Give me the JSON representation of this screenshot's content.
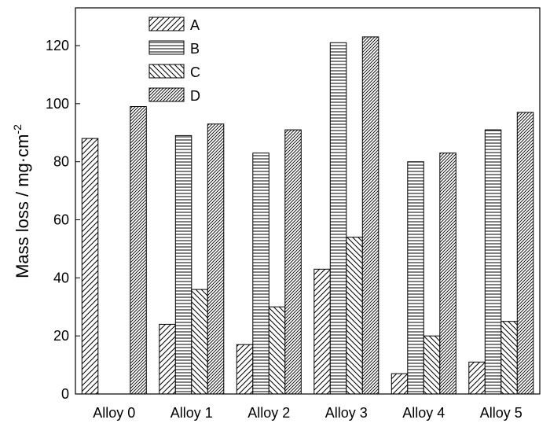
{
  "chart_data": {
    "type": "bar",
    "title": "",
    "xlabel": "",
    "ylabel": "Mass loss / mg·cm",
    "ylabel_superscript": "-2",
    "categories": [
      "Alloy 0",
      "Alloy 1",
      "Alloy 2",
      "Alloy 3",
      "Alloy 4",
      "Alloy 5"
    ],
    "series": [
      {
        "name": "A",
        "values": [
          88,
          24,
          17,
          43,
          7,
          11
        ]
      },
      {
        "name": "B",
        "values": [
          null,
          89,
          83,
          121,
          80,
          91
        ]
      },
      {
        "name": "C",
        "values": [
          null,
          36,
          30,
          54,
          20,
          25
        ]
      },
      {
        "name": "D",
        "values": [
          99,
          93,
          91,
          123,
          83,
          97
        ]
      }
    ],
    "ylim": [
      0,
      133
    ],
    "yticks": [
      "0",
      "20",
      "40",
      "60",
      "80",
      "100",
      "120"
    ],
    "grid": false,
    "legend_position": "top-left",
    "fill_patterns": [
      "diagonal-forward",
      "horizontal-lines",
      "diagonal-back",
      "diagonal-forward-dense"
    ],
    "colors": {
      "bar_fill": "#ffffff",
      "bar_stroke": "#000000",
      "axis": "#000000"
    }
  }
}
